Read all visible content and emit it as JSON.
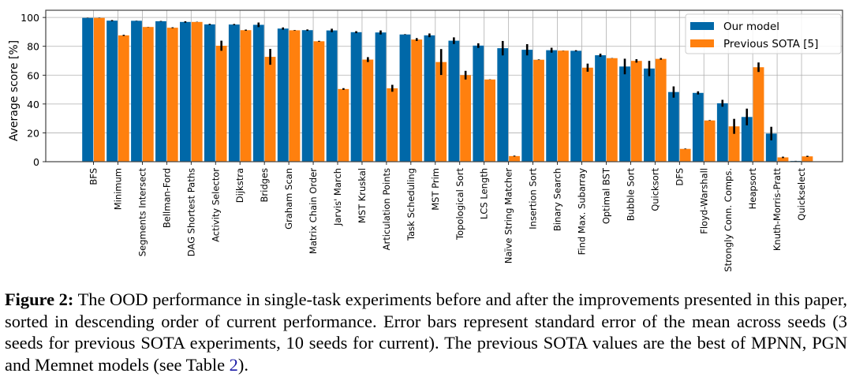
{
  "chart_data": {
    "type": "bar",
    "title": "",
    "xlabel": "",
    "ylabel": "Average score [%]",
    "ylim": [
      0,
      105
    ],
    "yticks": [
      0,
      20,
      40,
      60,
      80,
      100
    ],
    "grid": true,
    "legend_position": "top-right",
    "categories": [
      "BFS",
      "Minimum",
      "Segments Intersect",
      "Bellman-Ford",
      "DAG Shortest Paths",
      "Activity Selector",
      "Dijkstra",
      "Bridges",
      "Graham Scan",
      "Matrix Chain Order",
      "Jarvis' March",
      "MST Kruskal",
      "Articulation Points",
      "Task Scheduling",
      "MST Prim",
      "Topological Sort",
      "LCS Length",
      "Naïve String Matcher",
      "Insertion Sort",
      "Binary Search",
      "Find Max. Subarray",
      "Optimal BST",
      "Bubble Sort",
      "Quicksort",
      "DFS",
      "Floyd-Warshall",
      "Strongly Conn. Comps.",
      "Heapsort",
      "Knuth-Morris-Pratt",
      "Quickselect"
    ],
    "series": [
      {
        "name": "Our model",
        "color": "#0068a8",
        "values": [
          99.7,
          97.8,
          97.7,
          97.4,
          96.9,
          95.2,
          95.1,
          94.9,
          92.3,
          91.2,
          91.0,
          89.8,
          89.6,
          88.2,
          87.6,
          83.9,
          80.5,
          78.7,
          77.6,
          77.3,
          76.9,
          73.8,
          66.0,
          64.6,
          48.3,
          47.7,
          40.5,
          31.0,
          19.5,
          0.5
        ],
        "errors": [
          0.1,
          0.4,
          0.1,
          0.2,
          0.5,
          0.4,
          0.4,
          1.6,
          0.8,
          0.5,
          1.2,
          0.7,
          1.4,
          0.2,
          1.3,
          2.3,
          1.6,
          5.0,
          3.9,
          1.7,
          0.4,
          1.1,
          5.4,
          5.3,
          3.9,
          1.1,
          2.4,
          5.8,
          4.7,
          0.1
        ]
      },
      {
        "name": "Previous SOTA [5]",
        "color": "#ff800e",
        "values": [
          99.7,
          87.6,
          93.4,
          92.9,
          96.9,
          80.4,
          91.2,
          72.7,
          91.1,
          83.5,
          50.4,
          70.8,
          50.9,
          84.7,
          69.1,
          60.0,
          57.0,
          3.9,
          70.7,
          77.0,
          65.2,
          71.8,
          69.9,
          71.3,
          8.9,
          28.6,
          24.5,
          65.5,
          3.0,
          3.7
        ],
        "errors": [
          0.1,
          0.4,
          0.1,
          0.3,
          0.1,
          3.5,
          0.4,
          5.5,
          0.2,
          0.3,
          0.6,
          1.7,
          2.4,
          1.0,
          9.0,
          3.0,
          0.1,
          0.3,
          0.2,
          0.1,
          2.8,
          0.1,
          1.2,
          0.6,
          0.2,
          0.2,
          5.2,
          3.3,
          0.5,
          0.4
        ]
      }
    ]
  },
  "caption": {
    "label": "Figure 2:",
    "text_before_ref": " The OOD performance in single-task experiments before and after the improvements presented in this paper, sorted in descending order of current performance. Error bars represent standard error of the mean across seeds (3 seeds for previous SOTA experiments, 10 seeds for current). The previous SOTA values are the best of MPNN, PGN and Memnet models (see Table ",
    "ref": "2",
    "text_after_ref": ")."
  }
}
